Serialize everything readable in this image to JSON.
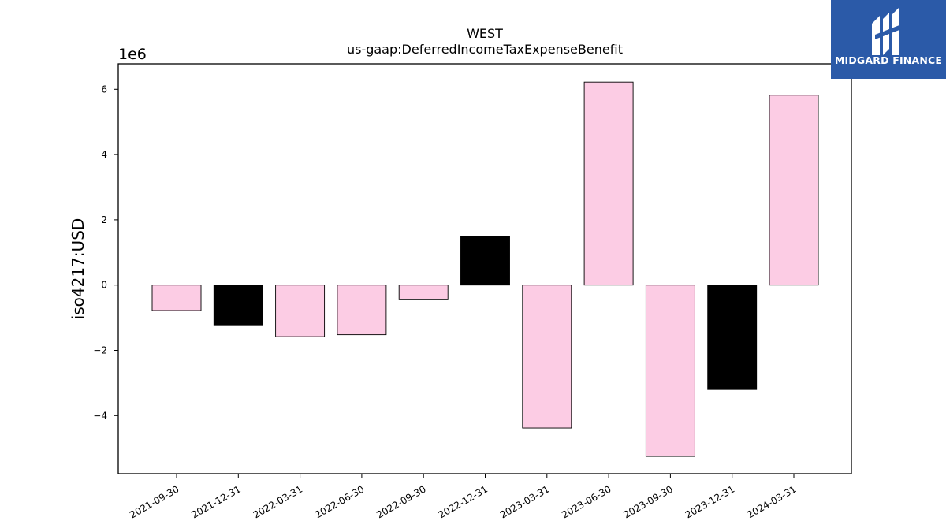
{
  "chart_data": {
    "type": "bar",
    "title": "WEST",
    "subtitle": "us-gaap:DeferredIncomeTaxExpenseBenefit",
    "ylabel": "iso4217:USD",
    "xlabel": "",
    "scale_label": "1e6",
    "categories": [
      "2021-09-30",
      "2021-12-31",
      "2022-03-31",
      "2022-06-30",
      "2022-09-30",
      "2022-12-31",
      "2023-03-31",
      "2023-06-30",
      "2023-09-30",
      "2023-12-31",
      "2024-03-31"
    ],
    "values": [
      -780000,
      -1220000,
      -1580000,
      -1520000,
      -450000,
      1480000,
      -4380000,
      6220000,
      -5250000,
      -3200000,
      5820000
    ],
    "bar_colors": [
      "#fccce4",
      "#000000",
      "#fccce4",
      "#fccce4",
      "#fccce4",
      "#000000",
      "#fccce4",
      "#fccce4",
      "#fccce4",
      "#000000",
      "#fccce4"
    ],
    "ylim": [
      -5780000,
      6780000
    ],
    "yticks": [
      -4000000,
      -2000000,
      0,
      2000000,
      4000000,
      6000000
    ],
    "ytick_labels": [
      "−4",
      "−2",
      "0",
      "2",
      "4",
      "6"
    ],
    "grid": false,
    "legend": "none"
  },
  "logo": {
    "text": "MIDGARD FINANCE",
    "bg_color": "#2b5aa8",
    "icon": "midgard-logo-icon"
  }
}
